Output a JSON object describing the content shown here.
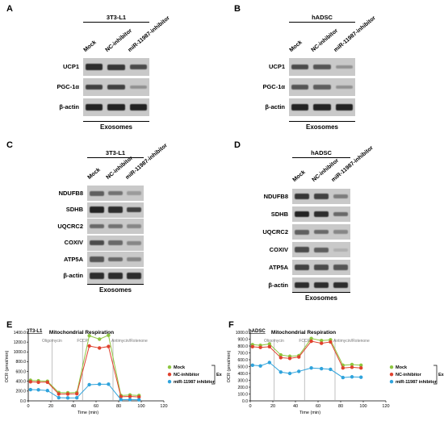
{
  "panels": {
    "A": {
      "letter": "A",
      "cell": "3T3-L1",
      "columns": [
        "Mock",
        "NC-inhibitor",
        "miR-11987-inhibitor"
      ],
      "rows": [
        "UCP1",
        "PGC-1α",
        "β-actin"
      ],
      "footer": "Exosomes",
      "bands": [
        [
          0.85,
          0.8,
          0.7
        ],
        [
          0.75,
          0.75,
          0.35
        ],
        [
          0.9,
          0.9,
          0.9
        ]
      ]
    },
    "B": {
      "letter": "B",
      "cell": "hADSC",
      "columns": [
        "Mock",
        "NC-inhibitor",
        "miR-11987-inhibitor"
      ],
      "rows": [
        "UCP1",
        "PGC-1α",
        "β-actin"
      ],
      "footer": "Exosomes",
      "bands": [
        [
          0.7,
          0.65,
          0.35
        ],
        [
          0.65,
          0.6,
          0.35
        ],
        [
          0.9,
          0.9,
          0.9
        ]
      ]
    },
    "C": {
      "letter": "C",
      "cell": "3T3-L1",
      "columns": [
        "Mock",
        "NC-inhibitor",
        "miR-11987-inhibitor"
      ],
      "rows": [
        "NDUFB8",
        "SDHB",
        "UQCRC2",
        "COXIV",
        "ATP5A",
        "β-actin"
      ],
      "footer": "Exosomes",
      "bands": [
        [
          0.6,
          0.5,
          0.3
        ],
        [
          0.9,
          0.85,
          0.75
        ],
        [
          0.55,
          0.5,
          0.4
        ],
        [
          0.7,
          0.55,
          0.4
        ],
        [
          0.65,
          0.55,
          0.4
        ],
        [
          0.85,
          0.85,
          0.85
        ]
      ]
    },
    "D": {
      "letter": "D",
      "cell": "hADSC",
      "columns": [
        "Mock",
        "NC-inhibitor",
        "miR-11987-inhibitor"
      ],
      "rows": [
        "NDUFB8",
        "SDHB",
        "UQCRC2",
        "COXIV",
        "ATP5A",
        "β-actin"
      ],
      "footer": "Exosomes",
      "bands": [
        [
          0.8,
          0.75,
          0.45
        ],
        [
          0.9,
          0.85,
          0.55
        ],
        [
          0.6,
          0.55,
          0.4
        ],
        [
          0.7,
          0.6,
          0.2
        ],
        [
          0.75,
          0.7,
          0.65
        ],
        [
          0.85,
          0.85,
          0.85
        ]
      ]
    }
  },
  "chart_data": [
    {
      "letter": "E",
      "cell": "3T3-L1",
      "type": "line",
      "title": "Mitochondrial Respiration",
      "xlabel": "Time (min)",
      "ylabel": "OCR (pmol/min)",
      "xlim": [
        0,
        120
      ],
      "ylim": [
        0,
        1400
      ],
      "xticks": [
        0,
        20,
        40,
        60,
        80,
        100,
        120
      ],
      "yticks": [
        "0.0",
        "200.0",
        "400.0",
        "600.0",
        "800.0",
        "1000.0",
        "1200.0",
        "1400.0"
      ],
      "injections": [
        {
          "label": "Oligomycin",
          "x": 21
        },
        {
          "label": "FCCP",
          "x": 48
        },
        {
          "label": "Antimycin/Rotenone",
          "x": 75
        }
      ],
      "x": [
        2,
        9,
        17,
        27,
        35,
        43,
        54,
        63,
        71,
        82,
        90,
        98
      ],
      "series": [
        {
          "name": "Mock",
          "color": "#8dc63f",
          "values": [
            420,
            410,
            400,
            170,
            165,
            170,
            1330,
            1260,
            1340,
            110,
            120,
            110
          ]
        },
        {
          "name": "NC-inhibitor",
          "color": "#e0412d",
          "values": [
            390,
            380,
            380,
            140,
            140,
            145,
            1120,
            1080,
            1110,
            85,
            90,
            80
          ]
        },
        {
          "name": "miR-11987 inhibitor",
          "color": "#2fa3dc",
          "values": [
            230,
            225,
            210,
            65,
            60,
            62,
            330,
            340,
            340,
            25,
            25,
            22
          ]
        }
      ],
      "legend_group": "Exosomes"
    },
    {
      "letter": "F",
      "cell": "hADSC",
      "type": "line",
      "title": "Mitochondrial Respiration",
      "xlabel": "Time (min)",
      "ylabel": "OCR (pmol/min)",
      "xlim": [
        0,
        120
      ],
      "ylim": [
        0,
        1000
      ],
      "xticks": [
        0,
        20,
        40,
        60,
        80,
        100,
        120
      ],
      "yticks": [
        "0.0",
        "100.0",
        "200.0",
        "300.0",
        "400.0",
        "500.0",
        "600.0",
        "700.0",
        "800.0",
        "900.0",
        "1000.0"
      ],
      "injections": [
        {
          "label": "Oligomycin",
          "x": 21
        },
        {
          "label": "FCCP",
          "x": 48
        },
        {
          "label": "Antimycin/Rotenone",
          "x": 75
        }
      ],
      "x": [
        2,
        9,
        17,
        27,
        35,
        43,
        54,
        63,
        71,
        82,
        90,
        98
      ],
      "series": [
        {
          "name": "Mock",
          "color": "#8dc63f",
          "values": [
            820,
            810,
            830,
            670,
            650,
            660,
            910,
            880,
            890,
            520,
            530,
            520
          ]
        },
        {
          "name": "NC-inhibitor",
          "color": "#e0412d",
          "values": [
            790,
            780,
            790,
            630,
            620,
            640,
            870,
            840,
            860,
            480,
            490,
            480
          ]
        },
        {
          "name": "miR-11987 inhibitor",
          "color": "#2fa3dc",
          "values": [
            520,
            510,
            560,
            420,
            400,
            430,
            480,
            470,
            460,
            340,
            350,
            345
          ]
        }
      ],
      "legend_group": "Exosomes"
    }
  ]
}
